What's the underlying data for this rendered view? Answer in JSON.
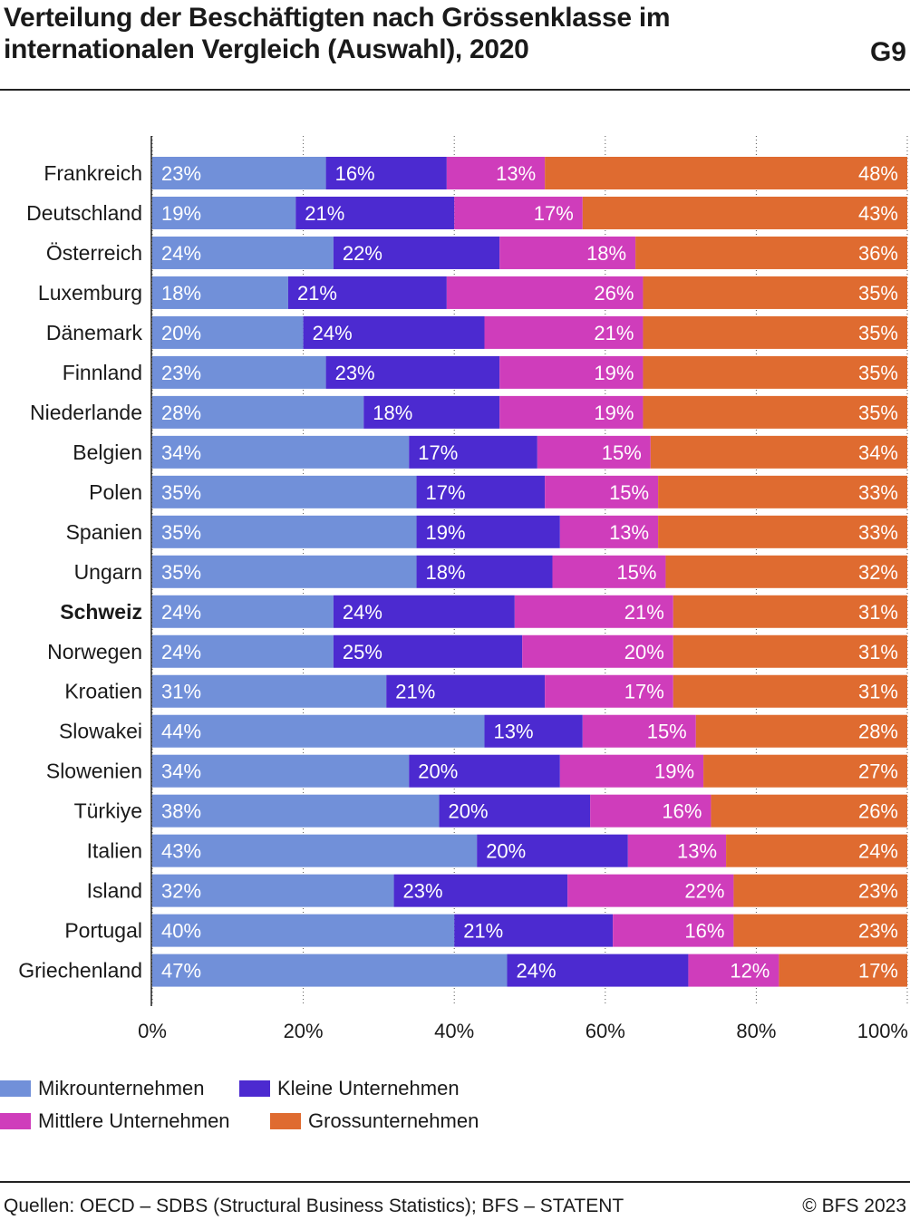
{
  "title": "Verteilung der Beschäftigten nach Grössenklasse im internationalen Vergleich (Auswahl), 2020",
  "figure_id": "G9",
  "source": "Quellen: OECD – SDBS (Structural Business Statistics); BFS – STATENT",
  "copyright": "© BFS 2023",
  "highlight_category": "Schweiz",
  "chart_data": {
    "type": "bar",
    "orientation": "horizontal",
    "stacked": "100%",
    "xlim": [
      0,
      100
    ],
    "xticks": [
      "0%",
      "20%",
      "40%",
      "60%",
      "80%",
      "100%"
    ],
    "grid": "vertical dotted",
    "legend_position": "bottom-left",
    "categories": [
      "Frankreich",
      "Deutschland",
      "Österreich",
      "Luxemburg",
      "Dänemark",
      "Finnland",
      "Niederlande",
      "Belgien",
      "Polen",
      "Spanien",
      "Ungarn",
      "Schweiz",
      "Norwegen",
      "Kroatien",
      "Slowakei",
      "Slowenien",
      "Türkiye",
      "Italien",
      "Island",
      "Portugal",
      "Griechenland"
    ],
    "series": [
      {
        "name": "Mikrounternehmen",
        "color": "#7190d9",
        "values": [
          23,
          19,
          24,
          18,
          20,
          23,
          28,
          34,
          35,
          35,
          35,
          24,
          24,
          31,
          44,
          34,
          38,
          43,
          32,
          40,
          47
        ]
      },
      {
        "name": "Kleine Unternehmen",
        "color": "#4c2ad0",
        "values": [
          16,
          21,
          22,
          21,
          24,
          23,
          18,
          17,
          17,
          19,
          18,
          24,
          25,
          21,
          13,
          20,
          20,
          20,
          23,
          21,
          24
        ]
      },
      {
        "name": "Mittlere Unternehmen",
        "color": "#cf3dbb",
        "values": [
          13,
          17,
          18,
          26,
          21,
          19,
          19,
          15,
          15,
          13,
          15,
          21,
          20,
          17,
          15,
          19,
          16,
          13,
          22,
          16,
          12
        ]
      },
      {
        "name": "Grossunternehmen",
        "color": "#df6b30",
        "values": [
          48,
          43,
          36,
          35,
          35,
          35,
          35,
          34,
          33,
          33,
          32,
          31,
          31,
          31,
          28,
          27,
          26,
          24,
          23,
          23,
          17
        ]
      }
    ]
  }
}
